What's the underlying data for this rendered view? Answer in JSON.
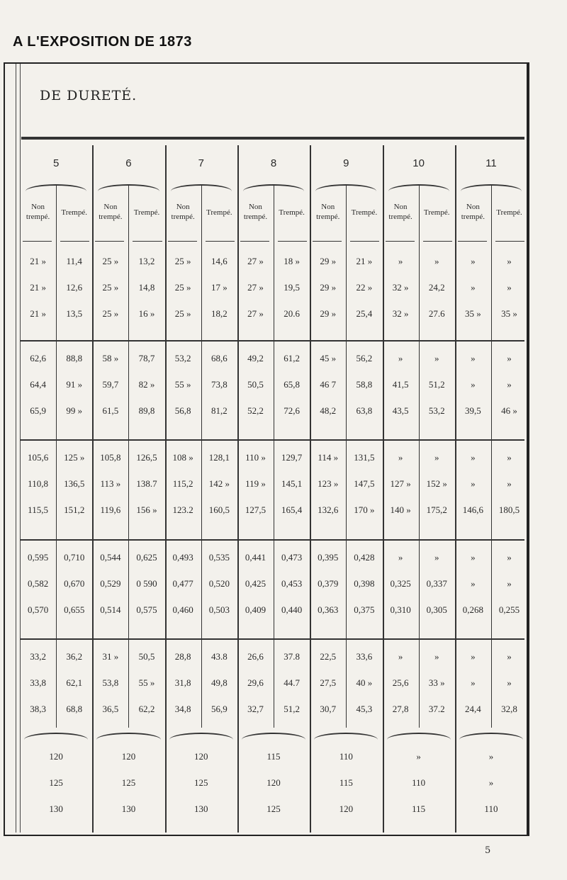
{
  "running_head": "A L'EXPOSITION DE 1873",
  "table_title": "DE DURETÉ.",
  "page_number": "5",
  "groups": [
    "5",
    "6",
    "7",
    "8",
    "9",
    "10",
    "11"
  ],
  "sub_headers": {
    "non": "Non trempé.",
    "tr": "Trempé."
  },
  "blocks": [
    [
      [
        "21 »",
        "11,4",
        "25 »",
        "13,2",
        "25 »",
        "14,6",
        "27 »",
        "18 »",
        "29 »",
        "21 »",
        "»",
        "»",
        "»",
        "»"
      ],
      [
        "21 »",
        "12,6",
        "25 »",
        "14,8",
        "25 »",
        "17 »",
        "27 »",
        "19,5",
        "29 »",
        "22 »",
        "32 »",
        "24,2",
        "»",
        "»"
      ],
      [
        "21 »",
        "13,5",
        "25 »",
        "16 »",
        "25 »",
        "18,2",
        "27 »",
        "20.6",
        "29 »",
        "25,4",
        "32 »",
        "27.6",
        "35 »",
        "35 »"
      ]
    ],
    [
      [
        "62,6",
        "88,8",
        "58 »",
        "78,7",
        "53,2",
        "68,6",
        "49,2",
        "61,2",
        "45 »",
        "56,2",
        "»",
        "»",
        "»",
        "»"
      ],
      [
        "64,4",
        "91 »",
        "59,7",
        "82 »",
        "55 »",
        "73,8",
        "50,5",
        "65,8",
        "46 7",
        "58,8",
        "41,5",
        "51,2",
        "»",
        "»"
      ],
      [
        "65,9",
        "99 »",
        "61,5",
        "89,8",
        "56,8",
        "81,2",
        "52,2",
        "72,6",
        "48,2",
        "63,8",
        "43,5",
        "53,2",
        "39,5",
        "46 »"
      ]
    ],
    [
      [
        "105,6",
        "125 »",
        "105,8",
        "126,5",
        "108 »",
        "128,1",
        "110 »",
        "129,7",
        "114 »",
        "131,5",
        "»",
        "»",
        "»",
        "»"
      ],
      [
        "110,8",
        "136,5",
        "113 »",
        "138.7",
        "115,2",
        "142 »",
        "119 »",
        "145,1",
        "123 »",
        "147,5",
        "127 »",
        "152 »",
        "»",
        "»"
      ],
      [
        "115,5",
        "151,2",
        "119,6",
        "156 »",
        "123.2",
        "160,5",
        "127,5",
        "165,4",
        "132,6",
        "170 »",
        "140 »",
        "175,2",
        "146,6",
        "180,5"
      ]
    ],
    [
      [
        "0,595",
        "0,710",
        "0,544",
        "0,625",
        "0,493",
        "0,535",
        "0,441",
        "0,473",
        "0,395",
        "0,428",
        "»",
        "»",
        "»",
        "»"
      ],
      [
        "0,582",
        "0,670",
        "0,529",
        "0 590",
        "0,477",
        "0,520",
        "0,425",
        "0,453",
        "0,379",
        "0,398",
        "0,325",
        "0,337",
        "»",
        "»"
      ],
      [
        "0,570",
        "0,655",
        "0,514",
        "0,575",
        "0,460",
        "0,503",
        "0,409",
        "0,440",
        "0,363",
        "0,375",
        "0,310",
        "0,305",
        "0,268",
        "0,255"
      ]
    ],
    [
      [
        "33,2",
        "36,2",
        "31 »",
        "50,5",
        "28,8",
        "43.8",
        "26,6",
        "37.8",
        "22,5",
        "33,6",
        "»",
        "»",
        "»",
        "»"
      ],
      [
        "33,8",
        "62,1",
        "53,8",
        "55 »",
        "31,8",
        "49,8",
        "29,6",
        "44.7",
        "27,5",
        "40 »",
        "25,6",
        "33 »",
        "»",
        "»"
      ],
      [
        "38,3",
        "68,8",
        "36,5",
        "62,2",
        "34,8",
        "56,9",
        "32,7",
        "51,2",
        "30,7",
        "45,3",
        "27,8",
        "37.2",
        "24,4",
        "32,8"
      ]
    ]
  ],
  "bottom": [
    [
      "120",
      "120",
      "120",
      "115",
      "110",
      "»",
      "»"
    ],
    [
      "125",
      "125",
      "125",
      "120",
      "115",
      "110",
      "»"
    ],
    [
      "130",
      "130",
      "130",
      "125",
      "120",
      "115",
      "110"
    ]
  ]
}
